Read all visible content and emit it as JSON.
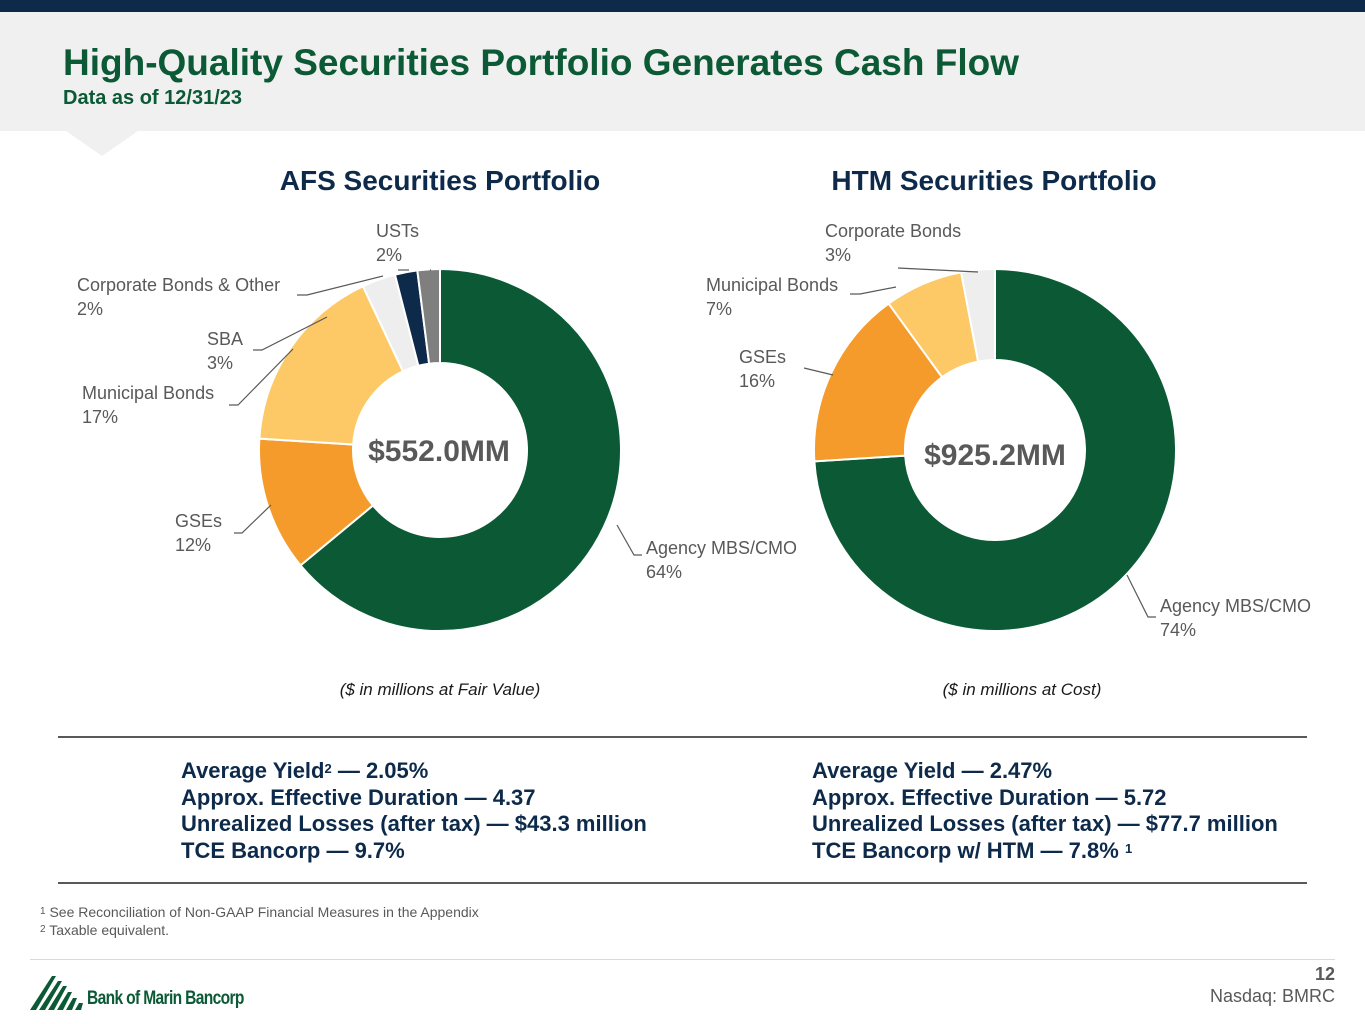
{
  "header": {
    "title": "High-Quality Securities Portfolio Generates Cash Flow",
    "subtitle": "Data as of 12/31/23"
  },
  "chart_data": [
    {
      "type": "pie",
      "title": "AFS Securities Portfolio",
      "center_label": "$552.0MM",
      "note": "($ in millions at Fair Value)",
      "slices": [
        {
          "name": "Agency MBS/CMO",
          "value": 64,
          "label": "64%",
          "color": "#0b5a35"
        },
        {
          "name": "GSEs",
          "value": 12,
          "label": "12%",
          "color": "#f59b2b"
        },
        {
          "name": "Municipal Bonds",
          "value": 17,
          "label": "17%",
          "color": "#fdc966"
        },
        {
          "name": "SBA",
          "value": 3,
          "label": "3%",
          "color": "#eeeeee"
        },
        {
          "name": "Corporate Bonds & Other",
          "value": 2,
          "label": "2%",
          "color": "#0d2a4a"
        },
        {
          "name": "USTs",
          "value": 2,
          "label": "2%",
          "color": "#7f7f7f"
        }
      ]
    },
    {
      "type": "pie",
      "title": "HTM Securities Portfolio",
      "center_label": "$925.2MM",
      "note": "($ in millions at Cost)",
      "slices": [
        {
          "name": "Agency MBS/CMO",
          "value": 74,
          "label": "74%",
          "color": "#0b5a35"
        },
        {
          "name": "GSEs",
          "value": 16,
          "label": "16%",
          "color": "#f59b2b"
        },
        {
          "name": "Municipal Bonds",
          "value": 7,
          "label": "7%",
          "color": "#fdc966"
        },
        {
          "name": "Corporate Bonds",
          "value": 3,
          "label": "3%",
          "color": "#eeeeee"
        }
      ]
    }
  ],
  "afs_stats": {
    "yield_label": "Average Yield",
    "yield_sup": "2",
    "yield_value": " — 2.05%",
    "duration": "Approx. Effective Duration — 4.37",
    "losses": "Unrealized Losses (after tax) — $43.3 million",
    "tce": "TCE Bancorp — 9.7%"
  },
  "htm_stats": {
    "yield": "Average Yield — 2.47%",
    "duration": "Approx. Effective Duration — 5.72",
    "losses": "Unrealized Losses (after tax) — $77.7 million",
    "tce": "TCE Bancorp w/ HTM — 7.8%",
    "tce_sup": "1"
  },
  "footnotes": [
    {
      "mark": "1",
      "text": " See Reconciliation of Non-GAAP Financial Measures in the Appendix"
    },
    {
      "mark": "2",
      "text": " Taxable equivalent."
    }
  ],
  "footer": {
    "logo_text": "Bank of Marin Bancorp",
    "page_number": "12",
    "ticker": "Nasdaq: BMRC"
  },
  "colors": {
    "title_green": "#0b5a35",
    "navy": "#0d2a4a",
    "header_gray": "#f0f0f0"
  }
}
